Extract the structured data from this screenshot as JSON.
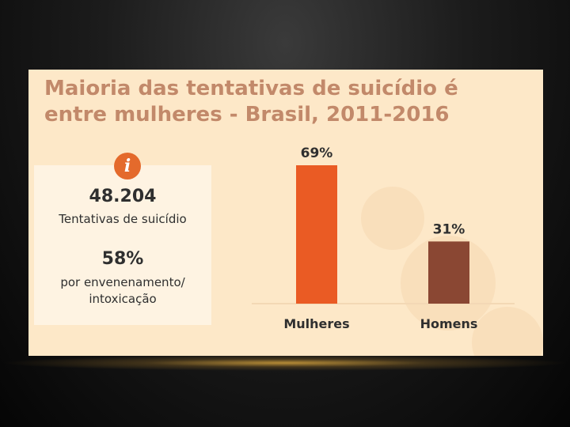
{
  "slide": {
    "title": "Maioria das tentativas de suicídio é entre mulheres - Brasil, 2011-2016",
    "info_icon": "info-icon",
    "stats": [
      {
        "value": "48.204",
        "label": "Tentativas de suicídio"
      },
      {
        "value": "58%",
        "label": "por envenenamento/ intoxicação"
      }
    ]
  },
  "chart_data": {
    "type": "bar",
    "categories": [
      "Mulheres",
      "Homens"
    ],
    "values": [
      69,
      31
    ],
    "value_labels": [
      "69%",
      "31%"
    ],
    "colors": [
      "#ea5b24",
      "#8a4733"
    ],
    "ylim": [
      0,
      69
    ],
    "title": "",
    "xlabel": "",
    "ylabel": "",
    "grid": false
  }
}
